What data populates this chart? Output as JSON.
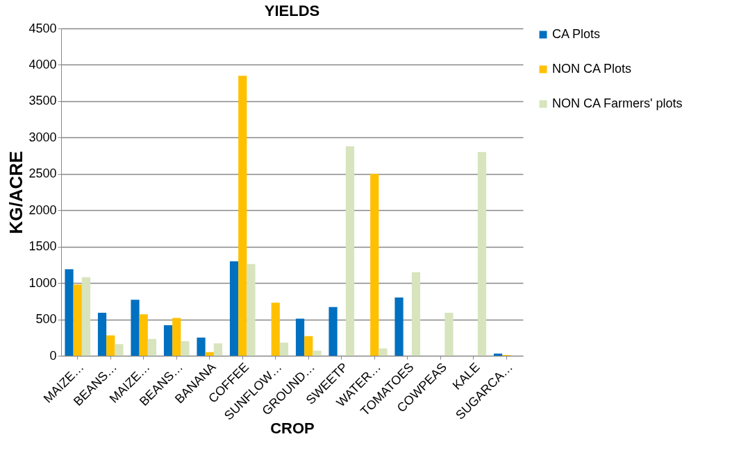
{
  "chart_data": {
    "type": "bar",
    "title": "YIELDS",
    "xlabel": "CROP",
    "ylabel": "KG/ACRE",
    "categories": [
      "MAIZE…",
      "BEANS…",
      "MAIZE…",
      "BEANS…",
      "BANANA",
      "COFFEE",
      "SUNFLOW…",
      "GROUND…",
      "SWEETP",
      "WATER…",
      "TOMATOES",
      "COWPEAS",
      "KALE",
      "SUGARCA…"
    ],
    "series": [
      {
        "name": "CA Plots",
        "color": "#0070c0",
        "values": [
          1190,
          590,
          770,
          420,
          250,
          1300,
          null,
          510,
          670,
          null,
          800,
          null,
          null,
          30
        ]
      },
      {
        "name": "NON CA Plots",
        "color": "#ffc000",
        "values": [
          980,
          280,
          570,
          520,
          50,
          3850,
          730,
          270,
          null,
          2500,
          null,
          null,
          null,
          10
        ]
      },
      {
        "name": "NON CA Farmers' plots",
        "color": "#d7e4bd",
        "values": [
          1080,
          160,
          230,
          200,
          170,
          1260,
          180,
          70,
          2880,
          100,
          1150,
          590,
          2800,
          null
        ]
      }
    ],
    "ylim": [
      0,
      4500
    ],
    "yticks": [
      0,
      500,
      1000,
      1500,
      2000,
      2500,
      3000,
      3500,
      4000,
      4500
    ],
    "grid": "y",
    "legend": "right"
  }
}
